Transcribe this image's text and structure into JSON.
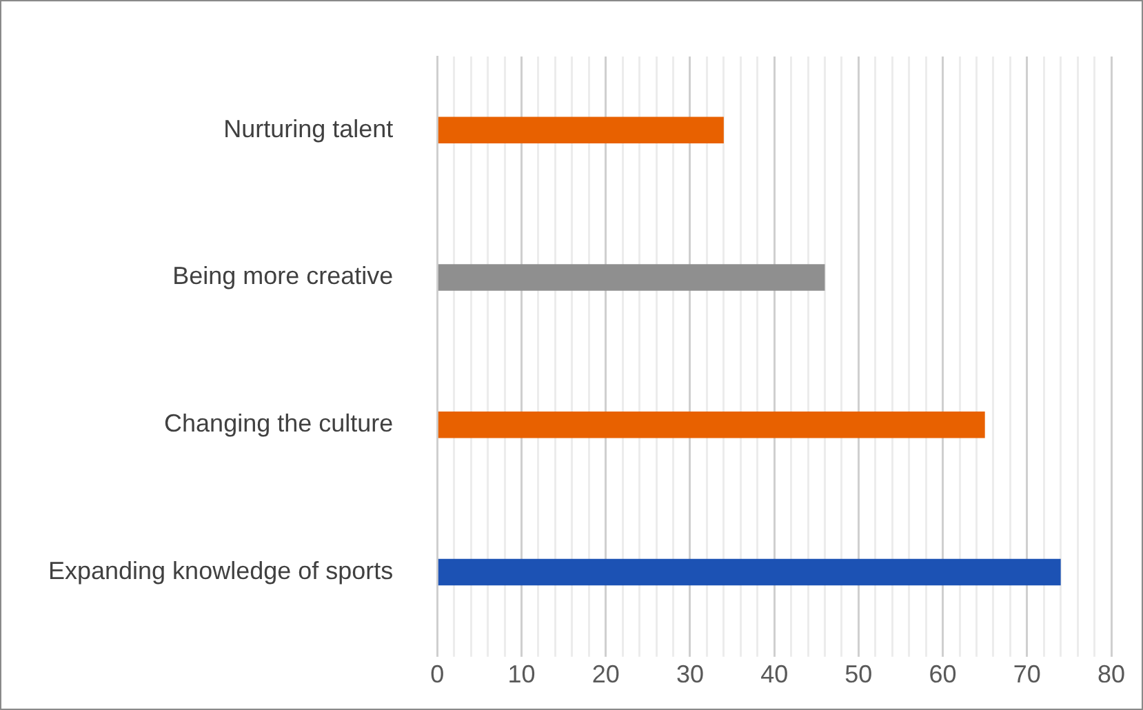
{
  "chart_data": {
    "type": "bar",
    "orientation": "horizontal",
    "categories": [
      "Nurturing talent",
      "Being more creative",
      "Changing the culture",
      "Expanding knowledge of sports"
    ],
    "values": [
      34,
      46,
      65,
      74
    ],
    "colors": [
      "#e86100",
      "#8f8f8f",
      "#e86100",
      "#1c52b4"
    ],
    "xlim": [
      0,
      80
    ],
    "xticks": [
      0,
      {
        "value": 2,
        "label": null
      },
      {
        "value": 4,
        "label": null
      },
      {
        "value": 6,
        "label": null
      },
      {
        "value": 8,
        "label": null
      },
      10,
      {
        "value": 12,
        "label": null
      },
      {
        "value": 14,
        "label": null
      },
      {
        "value": 16,
        "label": null
      },
      {
        "value": 18,
        "label": null
      },
      20,
      {
        "value": 22,
        "label": null
      },
      {
        "value": 24,
        "label": null
      },
      {
        "value": 26,
        "label": null
      },
      {
        "value": 28,
        "label": null
      },
      30,
      {
        "value": 32,
        "label": null
      },
      {
        "value": 34,
        "label": null
      },
      {
        "value": 36,
        "label": null
      },
      {
        "value": 38,
        "label": null
      },
      40,
      {
        "value": 42,
        "label": null
      },
      {
        "value": 44,
        "label": null
      },
      {
        "value": 46,
        "label": null
      },
      {
        "value": 48,
        "label": null
      },
      50,
      {
        "value": 52,
        "label": null
      },
      {
        "value": 54,
        "label": null
      },
      {
        "value": 56,
        "label": null
      },
      {
        "value": 58,
        "label": null
      },
      60,
      {
        "value": 62,
        "label": null
      },
      {
        "value": 64,
        "label": null
      },
      {
        "value": 66,
        "label": null
      },
      {
        "value": 68,
        "label": null
      },
      70,
      {
        "value": 72,
        "label": null
      },
      {
        "value": 74,
        "label": null
      },
      {
        "value": 76,
        "label": null
      },
      {
        "value": 78,
        "label": null
      },
      80
    ],
    "grid": "x"
  }
}
